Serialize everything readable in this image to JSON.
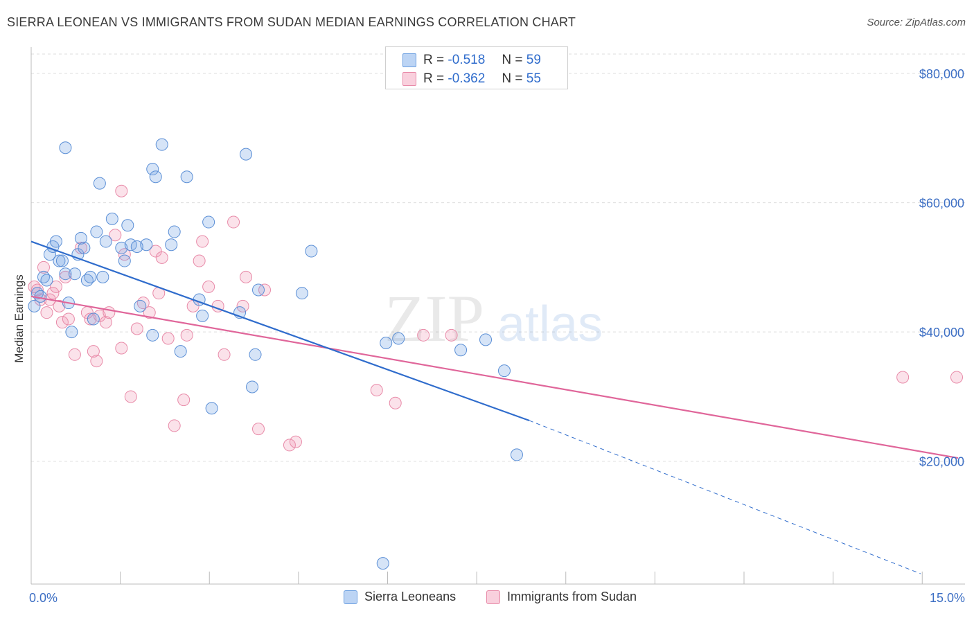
{
  "title": "SIERRA LEONEAN VS IMMIGRANTS FROM SUDAN MEDIAN EARNINGS CORRELATION CHART",
  "source": "Source: ZipAtlas.com",
  "watermark": {
    "zip": "ZIP",
    "atlas": "atlas"
  },
  "legend": [
    {
      "r_label": "R =",
      "r_value": "-0.518",
      "n_label": "N =",
      "n_value": "59",
      "color": "#a9c8f0",
      "border": "#6a9ee0"
    },
    {
      "r_label": "R =",
      "r_value": "-0.362",
      "n_label": "N =",
      "n_value": "55",
      "color": "#f7c2d2",
      "border": "#e88aa8"
    }
  ],
  "bottom_legend": [
    "Sierra Leoneans",
    "Immigrants from Sudan"
  ],
  "colors": {
    "blue_fill": "rgba(120,165,230,0.30)",
    "blue_stroke": "#5b8fd6",
    "blue_line": "#2f6ccc",
    "pink_fill": "rgba(240,150,180,0.28)",
    "pink_stroke": "#e88aa8",
    "pink_line": "#e0669a",
    "grid": "#dddddd",
    "axis_text": "#3d6fc4"
  },
  "chart_data": {
    "type": "scatter",
    "title": "SIERRA LEONEAN VS IMMIGRANTS FROM SUDAN MEDIAN EARNINGS CORRELATION CHART",
    "xlabel": "",
    "ylabel": "Median Earnings",
    "xlim": [
      0,
      15
    ],
    "ylim": [
      1000,
      83000
    ],
    "x_tick_labels": [
      "0.0%",
      "15.0%"
    ],
    "y_ticks": [
      20000,
      40000,
      60000,
      80000
    ],
    "y_tick_labels": [
      "$20,000",
      "$40,000",
      "$60,000",
      "$80,000"
    ],
    "series": [
      {
        "name": "Sierra Leoneans",
        "trend": {
          "x1": 0,
          "y1": 54000,
          "x2": 8.0,
          "y2": 26300,
          "dash_to_x": 15.0,
          "dash_to_y": 2600
        },
        "points": [
          [
            0.05,
            44000
          ],
          [
            0.1,
            46000
          ],
          [
            0.15,
            45500
          ],
          [
            0.2,
            48500
          ],
          [
            0.25,
            48000
          ],
          [
            0.3,
            52000
          ],
          [
            0.35,
            53200
          ],
          [
            0.4,
            54000
          ],
          [
            0.45,
            51000
          ],
          [
            0.5,
            51000
          ],
          [
            0.55,
            49000
          ],
          [
            0.6,
            44500
          ],
          [
            0.65,
            40000
          ],
          [
            0.7,
            49000
          ],
          [
            0.75,
            52000
          ],
          [
            0.8,
            54500
          ],
          [
            0.85,
            53000
          ],
          [
            0.9,
            48000
          ],
          [
            0.95,
            48500
          ],
          [
            1.0,
            42000
          ],
          [
            1.05,
            55500
          ],
          [
            1.1,
            63000
          ],
          [
            1.15,
            48500
          ],
          [
            1.2,
            54000
          ],
          [
            0.55,
            68500
          ],
          [
            1.3,
            57500
          ],
          [
            1.45,
            53000
          ],
          [
            1.5,
            51000
          ],
          [
            1.55,
            56500
          ],
          [
            1.6,
            53500
          ],
          [
            1.75,
            44000
          ],
          [
            1.85,
            53500
          ],
          [
            1.95,
            39500
          ],
          [
            1.7,
            53200
          ],
          [
            1.95,
            65200
          ],
          [
            2.0,
            64000
          ],
          [
            2.1,
            69000
          ],
          [
            2.25,
            53500
          ],
          [
            2.3,
            55500
          ],
          [
            2.4,
            37000
          ],
          [
            2.5,
            64000
          ],
          [
            2.7,
            45000
          ],
          [
            2.75,
            42500
          ],
          [
            2.85,
            57000
          ],
          [
            2.9,
            28200
          ],
          [
            3.35,
            43000
          ],
          [
            3.45,
            67500
          ],
          [
            3.55,
            31500
          ],
          [
            3.6,
            36500
          ],
          [
            3.65,
            46500
          ],
          [
            4.35,
            46000
          ],
          [
            4.5,
            52500
          ],
          [
            5.7,
            38300
          ],
          [
            5.9,
            39000
          ],
          [
            6.9,
            37200
          ],
          [
            7.3,
            38800
          ],
          [
            7.6,
            34000
          ],
          [
            7.8,
            21000
          ],
          [
            5.65,
            4200
          ]
        ]
      },
      {
        "name": "Immigrants from Sudan",
        "trend": {
          "x1": 0,
          "y1": 45500,
          "x2": 15.0,
          "y2": 20500
        },
        "points": [
          [
            0.05,
            47000
          ],
          [
            0.1,
            46500
          ],
          [
            0.15,
            45000
          ],
          [
            0.2,
            50000
          ],
          [
            0.25,
            43000
          ],
          [
            0.3,
            45000
          ],
          [
            0.35,
            46000
          ],
          [
            0.4,
            47000
          ],
          [
            0.45,
            44000
          ],
          [
            0.5,
            41500
          ],
          [
            0.55,
            48500
          ],
          [
            0.6,
            42000
          ],
          [
            0.7,
            36500
          ],
          [
            0.8,
            53000
          ],
          [
            0.9,
            43000
          ],
          [
            0.95,
            42000
          ],
          [
            1.0,
            37000
          ],
          [
            1.05,
            35500
          ],
          [
            1.1,
            42500
          ],
          [
            1.2,
            41500
          ],
          [
            1.25,
            43000
          ],
          [
            1.35,
            55000
          ],
          [
            1.45,
            37500
          ],
          [
            1.5,
            52000
          ],
          [
            1.6,
            30000
          ],
          [
            1.7,
            40500
          ],
          [
            1.8,
            44500
          ],
          [
            1.9,
            43000
          ],
          [
            2.0,
            52500
          ],
          [
            2.05,
            46000
          ],
          [
            2.1,
            51500
          ],
          [
            2.2,
            39000
          ],
          [
            2.3,
            25500
          ],
          [
            2.45,
            29500
          ],
          [
            2.5,
            39500
          ],
          [
            2.6,
            44000
          ],
          [
            2.7,
            51000
          ],
          [
            2.75,
            54000
          ],
          [
            2.85,
            47000
          ],
          [
            3.0,
            44000
          ],
          [
            3.1,
            36500
          ],
          [
            3.25,
            57000
          ],
          [
            3.4,
            44000
          ],
          [
            3.45,
            48500
          ],
          [
            3.65,
            25000
          ],
          [
            3.75,
            46500
          ],
          [
            1.45,
            61800
          ],
          [
            4.15,
            22500
          ],
          [
            4.25,
            23000
          ],
          [
            5.55,
            31000
          ],
          [
            5.85,
            29000
          ],
          [
            6.3,
            39500
          ],
          [
            6.75,
            39500
          ],
          [
            15.0,
            33000
          ],
          [
            14.0,
            33000
          ]
        ]
      }
    ]
  }
}
